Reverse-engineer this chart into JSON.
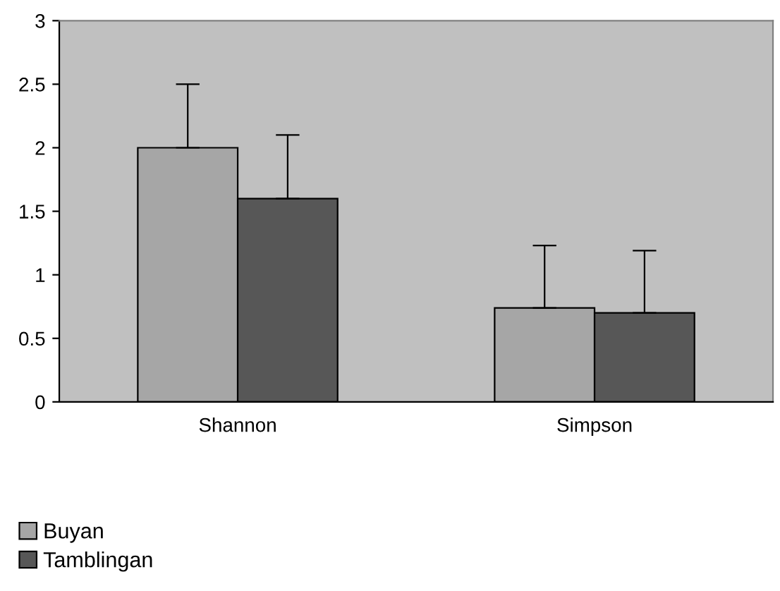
{
  "chart_data": {
    "type": "bar",
    "categories": [
      "Shannon",
      "Simpson"
    ],
    "series": [
      {
        "name": "Buyan",
        "color": "#a6a6a6",
        "values": [
          2.0,
          0.74
        ],
        "errors": [
          [
            2.0,
            2.5
          ],
          [
            0.74,
            1.23
          ]
        ]
      },
      {
        "name": "Tamblingan",
        "color": "#575757",
        "values": [
          1.6,
          0.7
        ],
        "errors": [
          [
            1.6,
            2.1
          ],
          [
            0.7,
            1.19
          ]
        ]
      }
    ],
    "ylim": [
      0,
      3
    ],
    "yticks": [
      0,
      0.5,
      1,
      1.5,
      2,
      2.5,
      3
    ],
    "grid": false,
    "legend": "bottom left"
  }
}
